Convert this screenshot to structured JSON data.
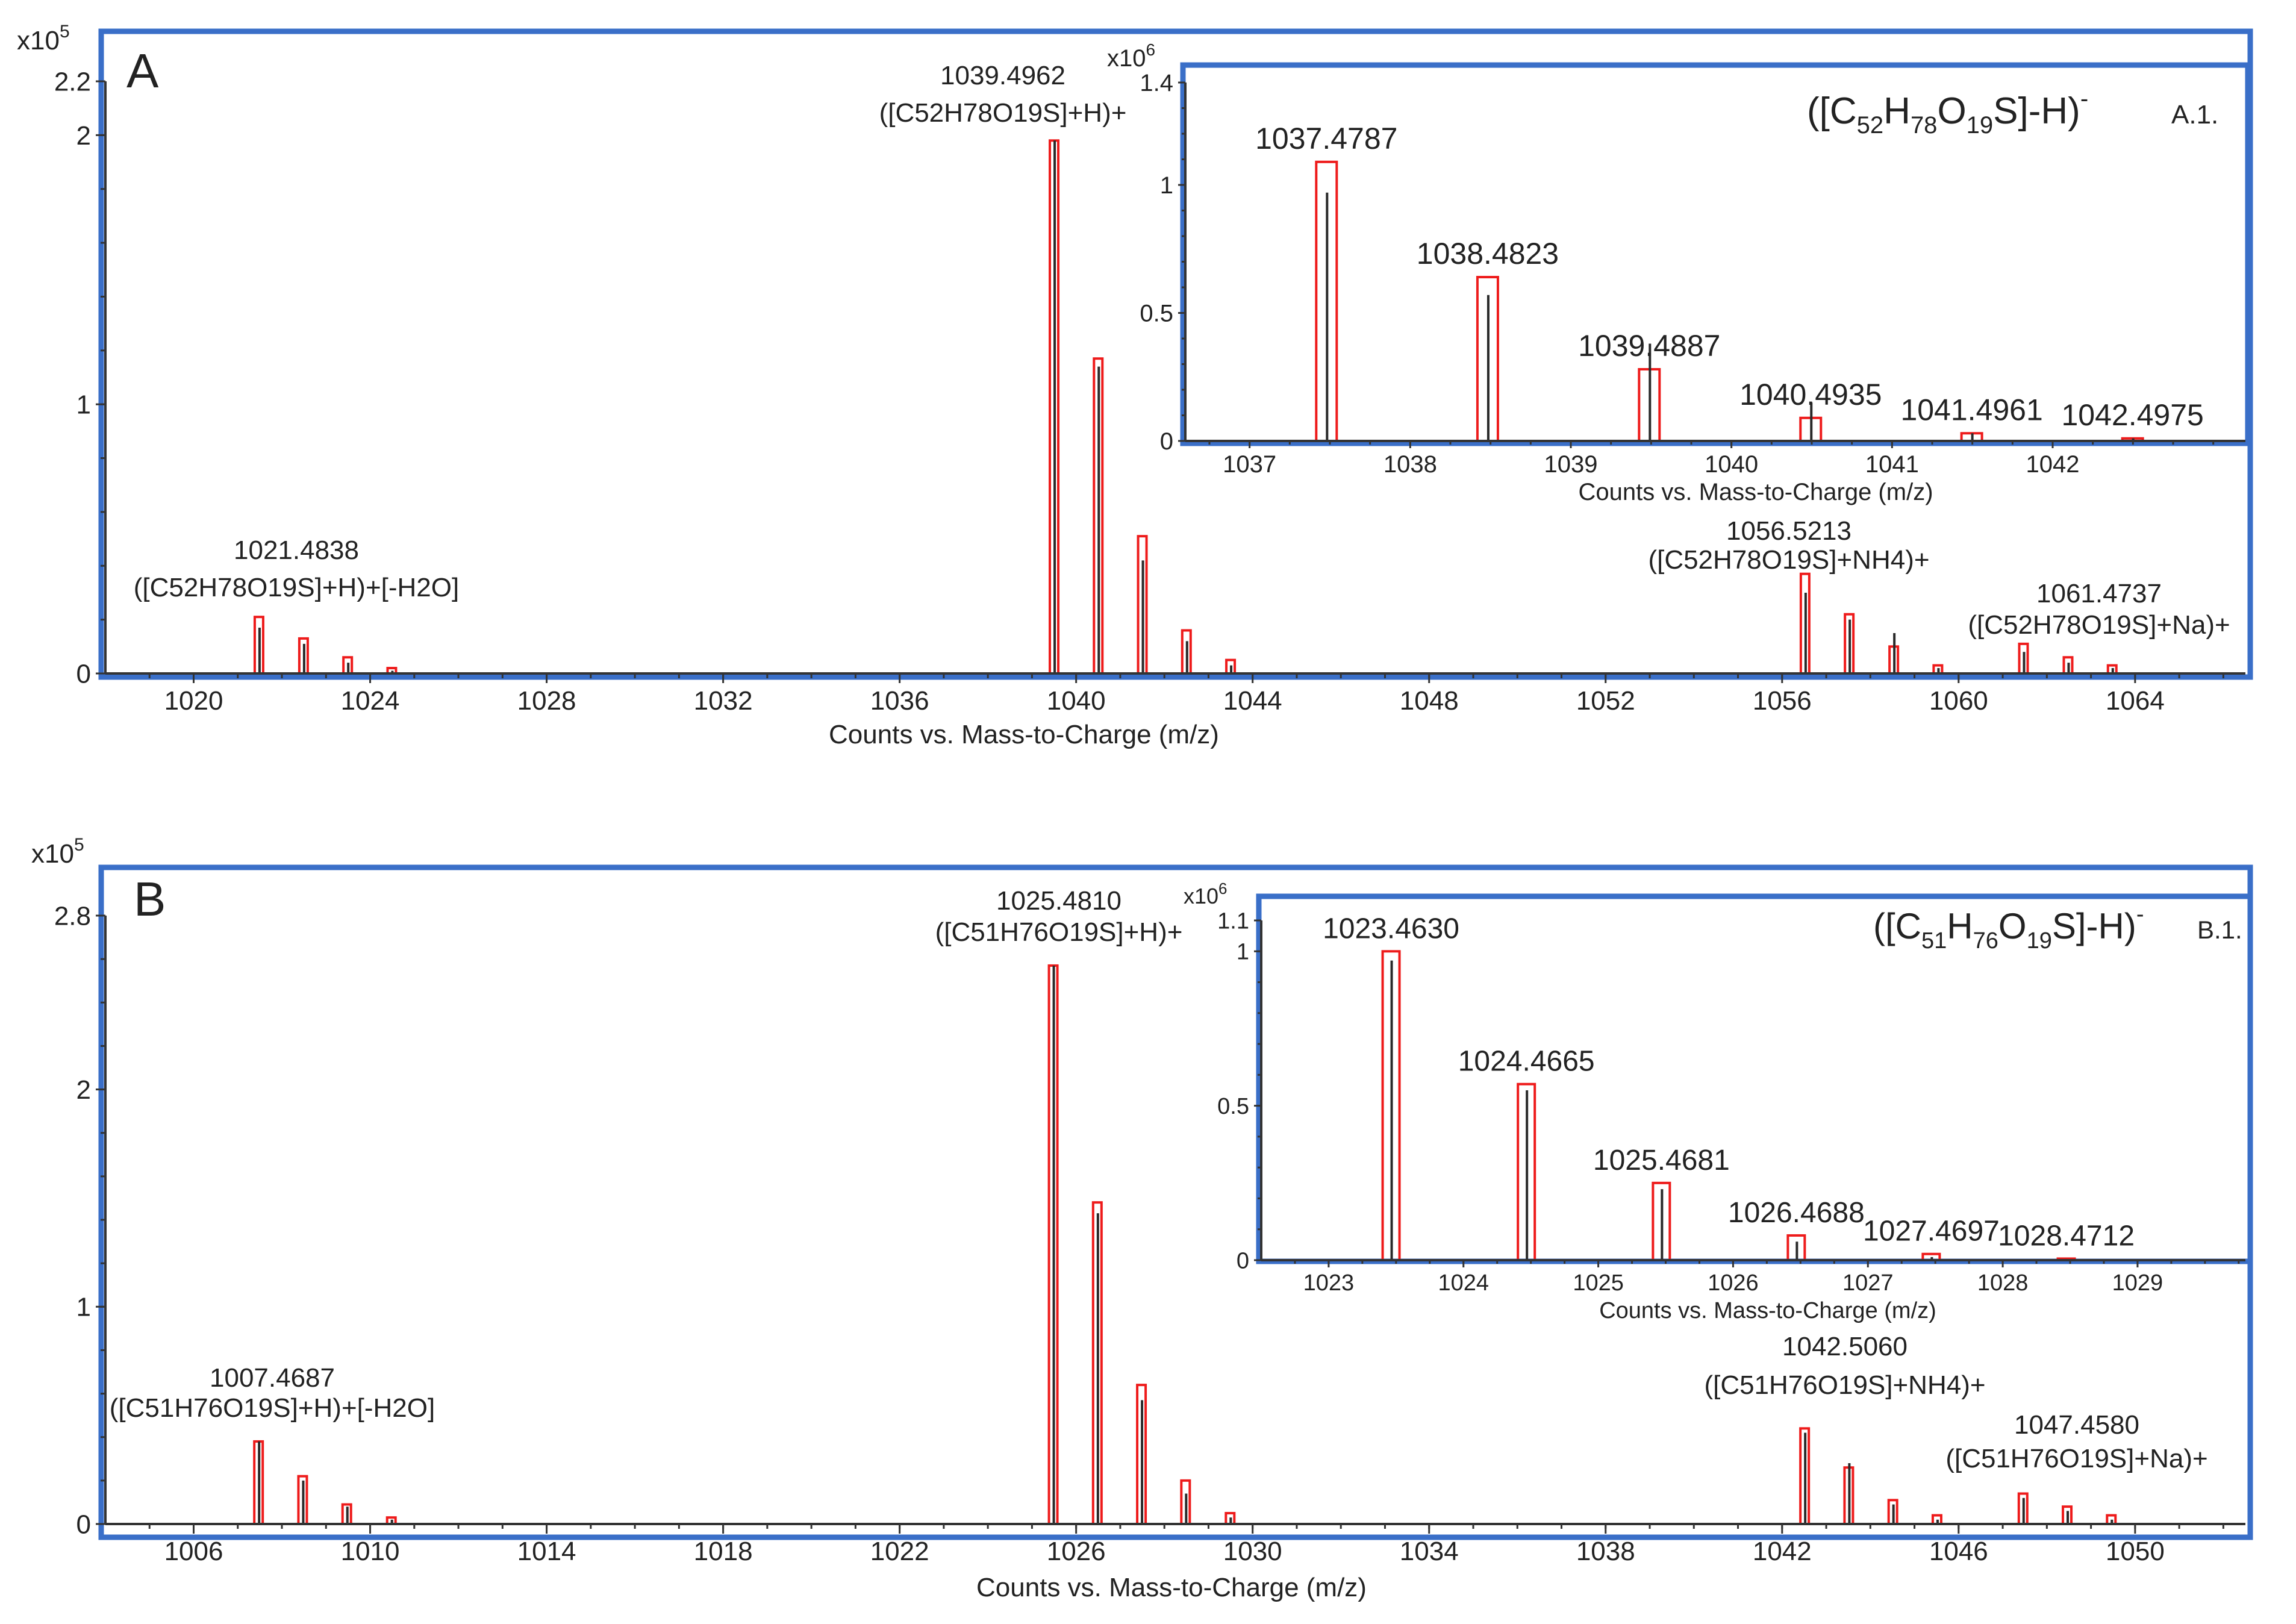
{
  "chart_data": [
    {
      "type": "bar",
      "panel": "A",
      "title": "",
      "xlabel": "Counts vs. Mass-to-Charge (m/z)",
      "ylabel": "",
      "y_scale_label": "x10",
      "y_scale_exp": "5",
      "xlim": [
        1018,
        1066.5
      ],
      "ylim": [
        0,
        2.2
      ],
      "x_ticks": [
        1020,
        1024,
        1028,
        1032,
        1036,
        1040,
        1044,
        1048,
        1052,
        1056,
        1060,
        1064
      ],
      "y_ticks": [
        0,
        1,
        2,
        2.2
      ],
      "y_tick_labels": [
        "0",
        "1",
        "2",
        "2.2"
      ],
      "peaks": [
        {
          "mz": 1021.48,
          "y": 0.21,
          "inner": 0.17
        },
        {
          "mz": 1022.49,
          "y": 0.13,
          "inner": 0.11
        },
        {
          "mz": 1023.49,
          "y": 0.06,
          "inner": 0.04
        },
        {
          "mz": 1024.49,
          "y": 0.02,
          "inner": 0.01
        },
        {
          "mz": 1039.5,
          "y": 1.98,
          "inner": 1.98
        },
        {
          "mz": 1040.5,
          "y": 1.17,
          "inner": 1.14
        },
        {
          "mz": 1041.5,
          "y": 0.51,
          "inner": 0.42
        },
        {
          "mz": 1042.5,
          "y": 0.16,
          "inner": 0.12
        },
        {
          "mz": 1043.5,
          "y": 0.05,
          "inner": 0.03
        },
        {
          "mz": 1056.52,
          "y": 0.37,
          "inner": 0.3
        },
        {
          "mz": 1057.52,
          "y": 0.22,
          "inner": 0.2
        },
        {
          "mz": 1058.53,
          "y": 0.1,
          "inner": 0.15
        },
        {
          "mz": 1059.53,
          "y": 0.03,
          "inner": 0.02
        },
        {
          "mz": 1061.47,
          "y": 0.11,
          "inner": 0.08
        },
        {
          "mz": 1062.48,
          "y": 0.06,
          "inner": 0.04
        },
        {
          "mz": 1063.48,
          "y": 0.03,
          "inner": 0.02
        }
      ],
      "annotations": [
        {
          "mz": "1021.4838",
          "label": "([C52H78O19S]+H)+[-H2O]"
        },
        {
          "mz": "1039.4962",
          "label": "([C52H78O19S]+H)+"
        },
        {
          "mz": "1056.5213",
          "label": "([C52H78O19S]+NH4)+"
        },
        {
          "mz": "1061.4737",
          "label": "([C52H78O19S]+Na)+"
        }
      ],
      "inset": {
        "id": "A.1.",
        "formula": {
          "pre": "([C",
          "s1": "52",
          "m1": "H",
          "s2": "78",
          "m2": "O",
          "s3": "19",
          "post": "S]-H)",
          "charge": "-"
        },
        "xlabel": "Counts vs. Mass-to-Charge (m/z)",
        "y_scale_label": "x10",
        "y_scale_exp": "6",
        "xlim": [
          1036.6,
          1043.2
        ],
        "ylim": [
          0,
          1.4
        ],
        "x_ticks": [
          1037,
          1038,
          1039,
          1040,
          1041,
          1042
        ],
        "y_ticks": [
          0,
          0.5,
          1,
          1.4
        ],
        "y_tick_labels": [
          "0",
          "0.5",
          "1",
          "1.4"
        ],
        "peaks": [
          {
            "mz": 1037.4787,
            "label": "1037.4787",
            "y": 1.09,
            "inner": 0.97
          },
          {
            "mz": 1038.4823,
            "label": "1038.4823",
            "y": 0.64,
            "inner": 0.57
          },
          {
            "mz": 1039.4887,
            "label": "1039.4887",
            "y": 0.28,
            "inner": 0.38
          },
          {
            "mz": 1040.4935,
            "label": "1040.4935",
            "y": 0.09,
            "inner": 0.15
          },
          {
            "mz": 1041.4961,
            "label": "1041.4961",
            "y": 0.03,
            "inner": 0.03
          },
          {
            "mz": 1042.4975,
            "label": "1042.4975",
            "y": 0.01,
            "inner": 0.01
          }
        ]
      }
    },
    {
      "type": "bar",
      "panel": "B",
      "title": "",
      "xlabel": "Counts vs. Mass-to-Charge (m/z)",
      "ylabel": "",
      "y_scale_label": "x10",
      "y_scale_exp": "5",
      "xlim": [
        1004,
        1052.5
      ],
      "ylim": [
        0,
        2.8
      ],
      "x_ticks": [
        1006,
        1010,
        1014,
        1018,
        1022,
        1026,
        1030,
        1034,
        1038,
        1042,
        1046,
        1050
      ],
      "y_ticks": [
        0,
        1,
        2,
        2.8
      ],
      "y_tick_labels": [
        "0",
        "1",
        "2",
        "2.8"
      ],
      "peaks": [
        {
          "mz": 1007.47,
          "y": 0.38,
          "inner": 0.38
        },
        {
          "mz": 1008.47,
          "y": 0.22,
          "inner": 0.2
        },
        {
          "mz": 1009.47,
          "y": 0.09,
          "inner": 0.08
        },
        {
          "mz": 1010.48,
          "y": 0.03,
          "inner": 0.02
        },
        {
          "mz": 1025.48,
          "y": 2.57,
          "inner": 2.57
        },
        {
          "mz": 1026.48,
          "y": 1.48,
          "inner": 1.43
        },
        {
          "mz": 1027.48,
          "y": 0.64,
          "inner": 0.57
        },
        {
          "mz": 1028.48,
          "y": 0.2,
          "inner": 0.14
        },
        {
          "mz": 1029.49,
          "y": 0.05,
          "inner": 0.03
        },
        {
          "mz": 1042.51,
          "y": 0.44,
          "inner": 0.42
        },
        {
          "mz": 1043.51,
          "y": 0.26,
          "inner": 0.28
        },
        {
          "mz": 1044.51,
          "y": 0.11,
          "inner": 0.09
        },
        {
          "mz": 1045.51,
          "y": 0.04,
          "inner": 0.02
        },
        {
          "mz": 1047.46,
          "y": 0.14,
          "inner": 0.12
        },
        {
          "mz": 1048.46,
          "y": 0.08,
          "inner": 0.06
        },
        {
          "mz": 1049.46,
          "y": 0.04,
          "inner": 0.02
        }
      ],
      "annotations": [
        {
          "mz": "1007.4687",
          "label": "([C51H76O19S]+H)+[-H2O]"
        },
        {
          "mz": "1025.4810",
          "label": "([C51H76O19S]+H)+"
        },
        {
          "mz": "1042.5060",
          "label": "([C51H76O19S]+NH4)+"
        },
        {
          "mz": "1047.4580",
          "label": "([C51H76O19S]+Na)+"
        }
      ],
      "inset": {
        "id": "B.1.",
        "formula": {
          "pre": "([C",
          "s1": "51",
          "m1": "H",
          "s2": "76",
          "m2": "O",
          "s3": "19",
          "post": "S]-H)",
          "charge": "-"
        },
        "xlabel": "Counts vs. Mass-to-Charge (m/z)",
        "y_scale_label": "x10",
        "y_scale_exp": "6",
        "xlim": [
          1022.5,
          1029.8
        ],
        "ylim": [
          0,
          1.1
        ],
        "x_ticks": [
          1023,
          1024,
          1025,
          1026,
          1027,
          1028,
          1029
        ],
        "y_ticks": [
          0,
          0.5,
          1,
          1.1
        ],
        "y_tick_labels": [
          "0",
          "0.5",
          "1",
          "1.1"
        ],
        "peaks": [
          {
            "mz": 1023.463,
            "label": "1023.4630",
            "y": 1.0,
            "inner": 0.97
          },
          {
            "mz": 1024.4665,
            "label": "1024.4665",
            "y": 0.57,
            "inner": 0.55
          },
          {
            "mz": 1025.4681,
            "label": "1025.4681",
            "y": 0.25,
            "inner": 0.23
          },
          {
            "mz": 1026.4688,
            "label": "1026.4688",
            "y": 0.08,
            "inner": 0.06
          },
          {
            "mz": 1027.4697,
            "label": "1027.4697",
            "y": 0.02,
            "inner": 0.01
          },
          {
            "mz": 1028.4712,
            "label": "1028.4712",
            "y": 0.005,
            "inner": 0.004
          }
        ]
      }
    }
  ]
}
